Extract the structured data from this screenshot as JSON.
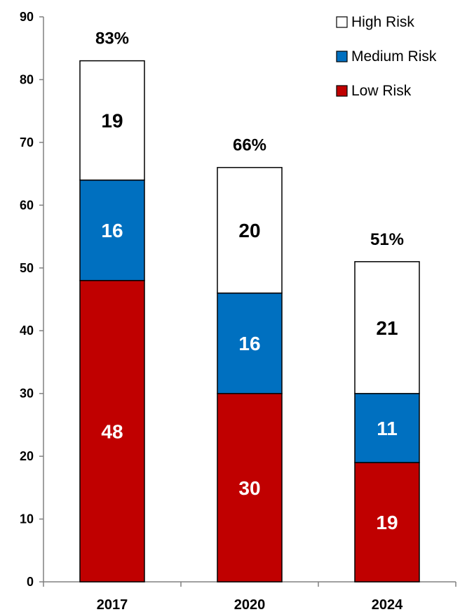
{
  "chart_data": {
    "type": "bar",
    "stacked": true,
    "categories": [
      "2017",
      "2020",
      "2024"
    ],
    "series": [
      {
        "name": "Low Risk",
        "color": "#c00000",
        "label_color": "#ffffff",
        "values": [
          48,
          30,
          19
        ],
        "value_labels": [
          "48",
          "30",
          "19"
        ]
      },
      {
        "name": "Medium Risk",
        "color": "#0070c0",
        "label_color": "#ffffff",
        "values": [
          16,
          16,
          11
        ],
        "value_labels": [
          "16",
          "16",
          "11"
        ]
      },
      {
        "name": "High Risk",
        "color": "#ffffff",
        "label_color": "#000000",
        "values": [
          19,
          20,
          21
        ],
        "value_labels": [
          "19",
          "20",
          "21"
        ]
      }
    ],
    "totals": [
      83,
      66,
      51
    ],
    "total_labels": [
      "83%",
      "66%",
      "51%"
    ],
    "ylim": [
      0,
      90
    ],
    "yticks": [
      0,
      10,
      20,
      30,
      40,
      50,
      60,
      70,
      80,
      90
    ],
    "ytick_labels": [
      "0",
      "10",
      "20",
      "30",
      "40",
      "50",
      "60",
      "70",
      "80",
      "90"
    ],
    "title": "",
    "xlabel": "",
    "ylabel": "",
    "grid": false,
    "legend": {
      "placement": "top-right",
      "order": [
        "High Risk",
        "Medium Risk",
        "Low Risk"
      ]
    }
  }
}
